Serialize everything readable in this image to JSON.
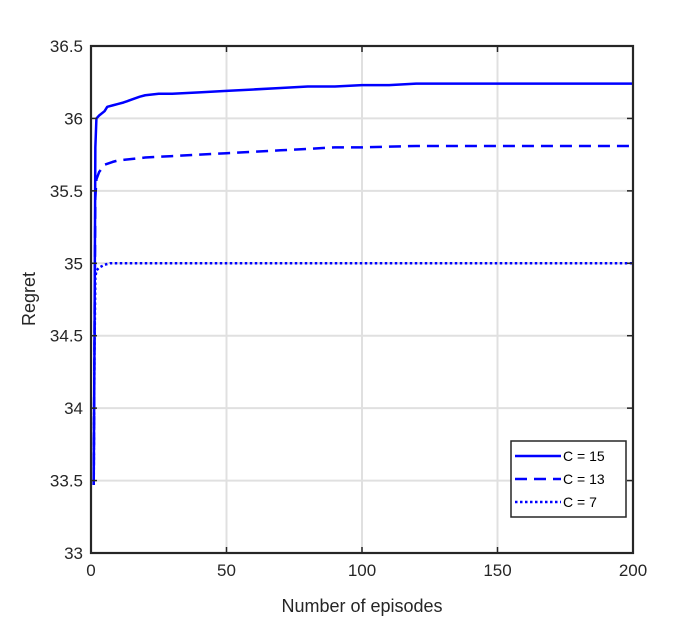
{
  "chart_data": {
    "type": "line",
    "title": "",
    "xlabel": "Number of episodes",
    "ylabel": "Regret",
    "xlim": [
      0,
      200
    ],
    "ylim": [
      33,
      36.5
    ],
    "xticks": [
      0,
      50,
      100,
      150,
      200
    ],
    "xtick_labels": [
      "0",
      "50",
      "100",
      "150",
      "200"
    ],
    "yticks": [
      33,
      33.5,
      34,
      34.5,
      35,
      35.5,
      36,
      36.5
    ],
    "ytick_labels": [
      "33",
      "33.5",
      "34",
      "34.5",
      "35",
      "35.5",
      "36",
      "36.5"
    ],
    "grid": true,
    "legend_position": "bottom-right",
    "series": [
      {
        "name": "C = 15",
        "style": "solid",
        "color": "#0000ff",
        "x": [
          1,
          1.3,
          1.6,
          2,
          3,
          5,
          6,
          8,
          10,
          12,
          15,
          18,
          20,
          25,
          30,
          40,
          50,
          60,
          70,
          80,
          90,
          100,
          110,
          120,
          150,
          200
        ],
        "y": [
          33.47,
          34.5,
          35.8,
          36.0,
          36.02,
          36.05,
          36.08,
          36.09,
          36.1,
          36.11,
          36.13,
          36.15,
          36.16,
          36.17,
          36.17,
          36.18,
          36.19,
          36.2,
          36.21,
          36.22,
          36.22,
          36.23,
          36.23,
          36.24,
          36.24,
          36.24
        ]
      },
      {
        "name": "C = 13",
        "style": "dashed",
        "color": "#0000ff",
        "x": [
          1,
          1.3,
          1.6,
          2,
          3,
          5,
          8,
          10,
          15,
          20,
          30,
          40,
          50,
          60,
          70,
          80,
          90,
          100,
          120,
          150,
          200
        ],
        "y": [
          33.47,
          34.5,
          35.45,
          35.58,
          35.63,
          35.68,
          35.7,
          35.71,
          35.72,
          35.73,
          35.74,
          35.75,
          35.76,
          35.77,
          35.78,
          35.79,
          35.8,
          35.8,
          35.81,
          35.81,
          35.81
        ]
      },
      {
        "name": "C = 7",
        "style": "dotted",
        "color": "#0000ff",
        "x": [
          1,
          1.3,
          1.6,
          2,
          3,
          4,
          5,
          7,
          10,
          15,
          20,
          50,
          100,
          150,
          200
        ],
        "y": [
          33.47,
          34.4,
          34.9,
          34.95,
          34.97,
          34.98,
          34.99,
          35.0,
          35.0,
          35.0,
          35.0,
          35.0,
          35.0,
          35.0,
          35.0
        ]
      }
    ]
  }
}
